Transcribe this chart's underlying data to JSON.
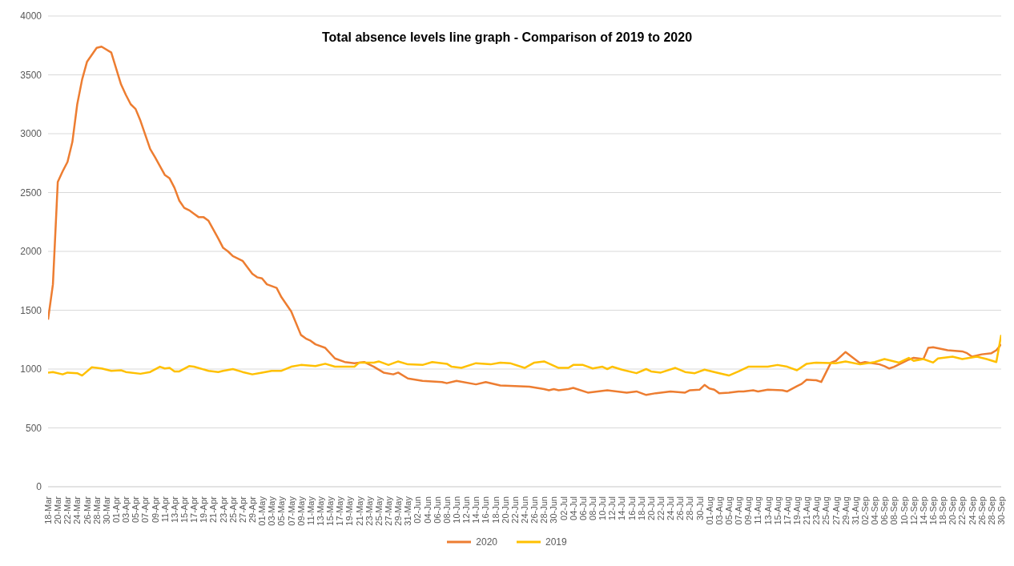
{
  "chart_data": {
    "type": "line",
    "title": "Total absence levels line graph - Comparison of 2019 to 2020",
    "xlim": [
      "--03-18",
      "--09-30"
    ],
    "ylim": [
      0,
      4000
    ],
    "yticks": [
      0,
      500,
      1000,
      1500,
      2000,
      2500,
      3000,
      3500,
      4000
    ],
    "grid": "y",
    "legend": "bottom",
    "marker": "none",
    "line_style": "solid",
    "xticks": [
      {
        "value": "--03-18",
        "label": "18-Mar"
      },
      {
        "value": "--03-20",
        "label": "20-Mar"
      },
      {
        "value": "--03-22",
        "label": "22-Mar"
      },
      {
        "value": "--03-24",
        "label": "24-Mar"
      },
      {
        "value": "--03-26",
        "label": "26-Mar"
      },
      {
        "value": "--03-28",
        "label": "28-Mar"
      },
      {
        "value": "--03-30",
        "label": "30-Mar"
      },
      {
        "value": "--04-01",
        "label": "01-Apr"
      },
      {
        "value": "--04-03",
        "label": "03-Apr"
      },
      {
        "value": "--04-05",
        "label": "05-Apr"
      },
      {
        "value": "--04-07",
        "label": "07-Apr"
      },
      {
        "value": "--04-09",
        "label": "09-Apr"
      },
      {
        "value": "--04-11",
        "label": "11-Apr"
      },
      {
        "value": "--04-13",
        "label": "13-Apr"
      },
      {
        "value": "--04-15",
        "label": "15-Apr"
      },
      {
        "value": "--04-17",
        "label": "17-Apr"
      },
      {
        "value": "--04-19",
        "label": "19-Apr"
      },
      {
        "value": "--04-21",
        "label": "21-Apr"
      },
      {
        "value": "--04-23",
        "label": "23-Apr"
      },
      {
        "value": "--04-25",
        "label": "25-Apr"
      },
      {
        "value": "--04-27",
        "label": "27-Apr"
      },
      {
        "value": "--04-29",
        "label": "29-Apr"
      },
      {
        "value": "--05-01",
        "label": "01-May"
      },
      {
        "value": "--05-03",
        "label": "03-May"
      },
      {
        "value": "--05-05",
        "label": "05-May"
      },
      {
        "value": "--05-07",
        "label": "07-May"
      },
      {
        "value": "--05-09",
        "label": "09-May"
      },
      {
        "value": "--05-11",
        "label": "11-May"
      },
      {
        "value": "--05-13",
        "label": "13-May"
      },
      {
        "value": "--05-15",
        "label": "15-May"
      },
      {
        "value": "--05-17",
        "label": "17-May"
      },
      {
        "value": "--05-19",
        "label": "19-May"
      },
      {
        "value": "--05-21",
        "label": "21-May"
      },
      {
        "value": "--05-23",
        "label": "23-May"
      },
      {
        "value": "--05-25",
        "label": "25-May"
      },
      {
        "value": "--05-27",
        "label": "27-May"
      },
      {
        "value": "--05-29",
        "label": "29-May"
      },
      {
        "value": "--05-31",
        "label": "31-May"
      },
      {
        "value": "--06-02",
        "label": "02-Jun"
      },
      {
        "value": "--06-04",
        "label": "04-Jun"
      },
      {
        "value": "--06-06",
        "label": "06-Jun"
      },
      {
        "value": "--06-08",
        "label": "08-Jun"
      },
      {
        "value": "--06-10",
        "label": "10-Jun"
      },
      {
        "value": "--06-12",
        "label": "12-Jun"
      },
      {
        "value": "--06-14",
        "label": "14-Jun"
      },
      {
        "value": "--06-16",
        "label": "16-Jun"
      },
      {
        "value": "--06-18",
        "label": "18-Jun"
      },
      {
        "value": "--06-20",
        "label": "20-Jun"
      },
      {
        "value": "--06-22",
        "label": "22-Jun"
      },
      {
        "value": "--06-24",
        "label": "24-Jun"
      },
      {
        "value": "--06-26",
        "label": "26-Jun"
      },
      {
        "value": "--06-28",
        "label": "28-Jun"
      },
      {
        "value": "--06-30",
        "label": "30-Jun"
      },
      {
        "value": "--07-02",
        "label": "02-Jul"
      },
      {
        "value": "--07-04",
        "label": "04-Jul"
      },
      {
        "value": "--07-06",
        "label": "06-Jul"
      },
      {
        "value": "--07-08",
        "label": "08-Jul"
      },
      {
        "value": "--07-10",
        "label": "10-Jul"
      },
      {
        "value": "--07-12",
        "label": "12-Jul"
      },
      {
        "value": "--07-14",
        "label": "14-Jul"
      },
      {
        "value": "--07-16",
        "label": "16-Jul"
      },
      {
        "value": "--07-18",
        "label": "18-Jul"
      },
      {
        "value": "--07-20",
        "label": "20-Jul"
      },
      {
        "value": "--07-22",
        "label": "22-Jul"
      },
      {
        "value": "--07-24",
        "label": "24-Jul"
      },
      {
        "value": "--07-26",
        "label": "26-Jul"
      },
      {
        "value": "--07-28",
        "label": "28-Jul"
      },
      {
        "value": "--07-30",
        "label": "30-Jul"
      },
      {
        "value": "--08-01",
        "label": "01-Aug"
      },
      {
        "value": "--08-03",
        "label": "03-Aug"
      },
      {
        "value": "--08-05",
        "label": "05-Aug"
      },
      {
        "value": "--08-07",
        "label": "07-Aug"
      },
      {
        "value": "--08-09",
        "label": "09-Aug"
      },
      {
        "value": "--08-11",
        "label": "11-Aug"
      },
      {
        "value": "--08-13",
        "label": "13-Aug"
      },
      {
        "value": "--08-15",
        "label": "15-Aug"
      },
      {
        "value": "--08-17",
        "label": "17-Aug"
      },
      {
        "value": "--08-19",
        "label": "19-Aug"
      },
      {
        "value": "--08-21",
        "label": "21-Aug"
      },
      {
        "value": "--08-23",
        "label": "23-Aug"
      },
      {
        "value": "--08-25",
        "label": "25-Aug"
      },
      {
        "value": "--08-27",
        "label": "27-Aug"
      },
      {
        "value": "--08-29",
        "label": "29-Aug"
      },
      {
        "value": "--08-31",
        "label": "31-Aug"
      },
      {
        "value": "--09-02",
        "label": "02-Sep"
      },
      {
        "value": "--09-04",
        "label": "04-Sep"
      },
      {
        "value": "--09-06",
        "label": "06-Sep"
      },
      {
        "value": "--09-08",
        "label": "08-Sep"
      },
      {
        "value": "--09-10",
        "label": "10-Sep"
      },
      {
        "value": "--09-12",
        "label": "12-Sep"
      },
      {
        "value": "--09-14",
        "label": "14-Sep"
      },
      {
        "value": "--09-16",
        "label": "16-Sep"
      },
      {
        "value": "--09-18",
        "label": "18-Sep"
      },
      {
        "value": "--09-20",
        "label": "20-Sep"
      },
      {
        "value": "--09-22",
        "label": "22-Sep"
      },
      {
        "value": "--09-24",
        "label": "24-Sep"
      },
      {
        "value": "--09-26",
        "label": "26-Sep"
      },
      {
        "value": "--09-28",
        "label": "28-Sep"
      },
      {
        "value": "--09-30",
        "label": "30-Sep"
      }
    ],
    "series": [
      {
        "name": "2020",
        "color": "#ed7d31",
        "x": [
          "--03-18",
          "--03-19",
          "--03-20",
          "--03-21",
          "--03-22",
          "--03-23",
          "--03-24",
          "--03-25",
          "--03-26",
          "--03-28",
          "--03-29",
          "--03-31",
          "--04-02",
          "--04-03",
          "--04-04",
          "--04-05",
          "--04-06",
          "--04-08",
          "--04-09",
          "--04-11",
          "--04-12",
          "--04-13",
          "--04-14",
          "--04-15",
          "--04-16",
          "--04-17",
          "--04-18",
          "--04-19",
          "--04-20",
          "--04-22",
          "--04-23",
          "--04-24",
          "--04-25",
          "--04-27",
          "--04-29",
          "--04-30",
          "--05-01",
          "--05-02",
          "--05-04",
          "--05-05",
          "--05-07",
          "--05-09",
          "--05-10",
          "--05-11",
          "--05-12",
          "--05-14",
          "--05-16",
          "--05-18",
          "--05-20",
          "--05-22",
          "--05-24",
          "--05-26",
          "--05-28",
          "--05-29",
          "--05-31",
          "--06-03",
          "--06-07",
          "--06-08",
          "--06-10",
          "--06-14",
          "--06-16",
          "--06-19",
          "--06-25",
          "--06-28",
          "--06-29",
          "--06-30",
          "--07-01",
          "--07-03",
          "--07-04",
          "--07-07",
          "--07-11",
          "--07-15",
          "--07-17",
          "--07-19",
          "--07-21",
          "--07-23",
          "--07-24",
          "--07-27",
          "--07-28",
          "--07-30",
          "--07-31",
          "--08-01",
          "--08-02",
          "--08-03",
          "--08-05",
          "--08-07",
          "--08-08",
          "--08-10",
          "--08-11",
          "--08-13",
          "--08-16",
          "--08-17",
          "--08-19",
          "--08-20",
          "--08-21",
          "--08-23",
          "--08-24",
          "--08-26",
          "--08-27",
          "--08-29",
          "--09-01",
          "--09-02",
          "--09-05",
          "--09-06",
          "--09-07",
          "--09-08",
          "--09-11",
          "--09-12",
          "--09-14",
          "--09-15",
          "--09-16",
          "--09-19",
          "--09-22",
          "--09-23",
          "--09-24",
          "--09-26",
          "--09-28",
          "--09-29",
          "--09-30"
        ],
        "values": [
          1420,
          1720,
          2590,
          2680,
          2760,
          2930,
          3250,
          3460,
          3610,
          3730,
          3740,
          3690,
          3420,
          3330,
          3250,
          3210,
          3110,
          2870,
          2800,
          2650,
          2620,
          2540,
          2430,
          2370,
          2350,
          2320,
          2290,
          2290,
          2260,
          2110,
          2030,
          2000,
          1960,
          1920,
          1810,
          1780,
          1770,
          1720,
          1690,
          1610,
          1490,
          1290,
          1260,
          1240,
          1210,
          1180,
          1090,
          1060,
          1050,
          1060,
          1020,
          970,
          955,
          970,
          920,
          900,
          890,
          880,
          900,
          870,
          890,
          860,
          850,
          830,
          820,
          830,
          820,
          830,
          840,
          800,
          820,
          800,
          810,
          780,
          795,
          805,
          810,
          800,
          820,
          825,
          865,
          835,
          825,
          795,
          800,
          810,
          810,
          820,
          810,
          825,
          820,
          810,
          855,
          875,
          910,
          905,
          890,
          1055,
          1070,
          1145,
          1050,
          1060,
          1040,
          1025,
          1005,
          1020,
          1080,
          1095,
          1085,
          1180,
          1185,
          1160,
          1150,
          1135,
          1105,
          1125,
          1135,
          1160,
          1210
        ]
      },
      {
        "name": "2019",
        "color": "#ffc000",
        "x": [
          "--03-18",
          "--03-19",
          "--03-21",
          "--03-22",
          "--03-24",
          "--03-25",
          "--03-27",
          "--03-29",
          "--03-31",
          "--04-02",
          "--04-03",
          "--04-06",
          "--04-08",
          "--04-10",
          "--04-11",
          "--04-12",
          "--04-13",
          "--04-14",
          "--04-16",
          "--04-17",
          "--04-20",
          "--04-22",
          "--04-23",
          "--04-25",
          "--04-27",
          "--04-29",
          "--05-01",
          "--05-03",
          "--05-05",
          "--05-07",
          "--05-09",
          "--05-12",
          "--05-14",
          "--05-16",
          "--05-20",
          "--05-21",
          "--05-24",
          "--05-25",
          "--05-27",
          "--05-29",
          "--05-31",
          "--06-03",
          "--06-05",
          "--06-08",
          "--06-09",
          "--06-11",
          "--06-14",
          "--06-17",
          "--06-19",
          "--06-21",
          "--06-24",
          "--06-26",
          "--06-28",
          "--07-01",
          "--07-03",
          "--07-04",
          "--07-06",
          "--07-08",
          "--07-10",
          "--07-11",
          "--07-12",
          "--07-14",
          "--07-17",
          "--07-19",
          "--07-20",
          "--07-22",
          "--07-25",
          "--07-27",
          "--07-29",
          "--07-31",
          "--08-02",
          "--08-05",
          "--08-07",
          "--08-09",
          "--08-13",
          "--08-15",
          "--08-17",
          "--08-19",
          "--08-21",
          "--08-23",
          "--08-27",
          "--08-29",
          "--09-01",
          "--09-04",
          "--09-06",
          "--09-09",
          "--09-11",
          "--09-12",
          "--09-14",
          "--09-16",
          "--09-17",
          "--09-20",
          "--09-22",
          "--09-25",
          "--09-27",
          "--09-29",
          "--09-30"
        ],
        "values": [
          970,
          975,
          955,
          970,
          965,
          945,
          1015,
          1005,
          985,
          990,
          975,
          960,
          975,
          1020,
          1005,
          1010,
          980,
          980,
          1025,
          1020,
          985,
          975,
          985,
          1000,
          975,
          955,
          970,
          985,
          985,
          1020,
          1035,
          1025,
          1045,
          1020,
          1020,
          1055,
          1055,
          1065,
          1035,
          1065,
          1040,
          1035,
          1060,
          1045,
          1020,
          1010,
          1050,
          1040,
          1055,
          1050,
          1010,
          1055,
          1065,
          1010,
          1010,
          1035,
          1035,
          1005,
          1020,
          1000,
          1020,
          995,
          965,
          1000,
          980,
          970,
          1010,
          975,
          965,
          995,
          975,
          945,
          980,
          1020,
          1020,
          1035,
          1020,
          990,
          1045,
          1055,
          1050,
          1065,
          1040,
          1060,
          1085,
          1055,
          1095,
          1070,
          1085,
          1055,
          1090,
          1105,
          1085,
          1105,
          1085,
          1060,
          1290
        ]
      }
    ]
  }
}
